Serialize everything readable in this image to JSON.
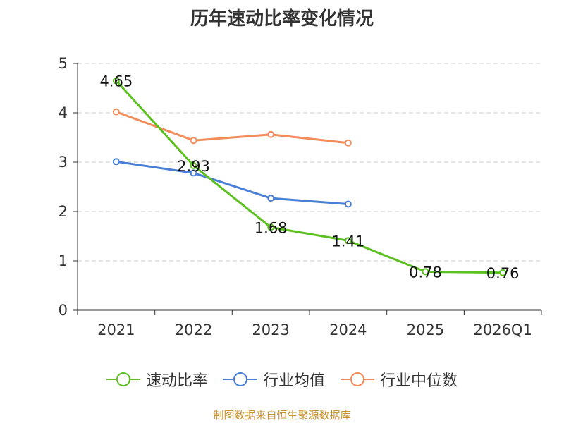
{
  "source_note": "制图数据来自恒生聚源数据库",
  "chart_data": {
    "type": "line",
    "title": "历年速动比率变化情况",
    "categories": [
      "2021",
      "2022",
      "2023",
      "2024",
      "2025",
      "2026Q1"
    ],
    "ylim": [
      0,
      5
    ],
    "yticks": [
      0,
      1,
      2,
      3,
      4,
      5
    ],
    "grid": true,
    "legend_position": "bottom",
    "series": [
      {
        "name": "速动比率",
        "color": "#5cc120",
        "values": [
          4.65,
          2.93,
          1.68,
          1.41,
          0.78,
          0.76
        ],
        "labels": [
          "4.65",
          "2.93",
          "1.68",
          "1.41",
          "0.78",
          "0.76"
        ],
        "show_labels": true
      },
      {
        "name": "行业均值",
        "color": "#4a7fd8",
        "values": [
          3.01,
          2.78,
          2.27,
          2.15,
          null,
          null
        ],
        "show_labels": false
      },
      {
        "name": "行业中位数",
        "color": "#f48b5a",
        "values": [
          4.02,
          3.44,
          3.56,
          3.39,
          null,
          null
        ],
        "show_labels": false
      }
    ]
  }
}
